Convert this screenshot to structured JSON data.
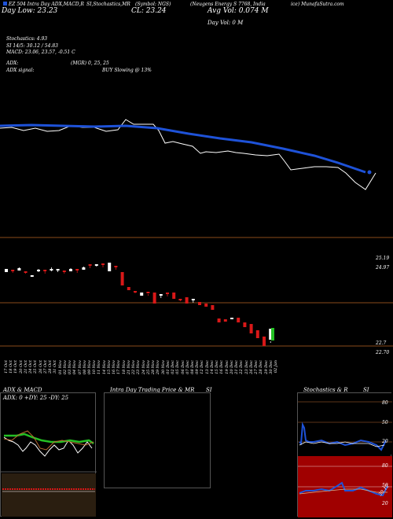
{
  "header": {
    "top_left": "EZ 504 Intra Day ADX,MACD,R",
    "top_left_2": "SI,Stochastics,MR",
    "top_mid": "(Symbol: NGS)",
    "top_right": "(Neugens Energy S 7768, India",
    "top_right_2": "ice) MunafaSutra.com",
    "day_low": "Day Low: 23.23",
    "close": "CL: 23.24",
    "avg_vol": "Avg Vol: 0.074   M",
    "day_vol": "Day Vol: 0   M",
    "stoch_line": "Stochastics: 4.93",
    "si_line": "SI 14/5: 30.12 / 54.83",
    "macd_line": "MACD: 23.06, 23.57, -0.51 C",
    "adx_line": "ADX:",
    "adx_vals": "(MGR) 0, 25, 25",
    "adx_signal": "ADX signal:",
    "buy_signal": "BUY Slowing @ 13%"
  },
  "price_levels": {
    "l1": "25.19",
    "l2": "24.97",
    "l3": "22.7",
    "l4": "22.70"
  },
  "date_labels": [
    "17 Oct",
    "18 Oct",
    "19 Oct",
    "20 Oct",
    "21 Oct",
    "24 Oct",
    "25 Oct",
    "26 Oct",
    "27 Oct",
    "28 Oct",
    "31 Oct",
    "01 Nov",
    "02 Nov",
    "03 Nov",
    "04 Nov",
    "07 Nov",
    "08 Nov",
    "09 Nov",
    "10 Nov",
    "11 Nov",
    "14 Nov",
    "15 Nov",
    "16 Nov",
    "17 Nov",
    "18 Nov",
    "21 Nov",
    "22 Nov",
    "23 Nov",
    "24 Nov",
    "25 Nov",
    "28 Nov",
    "29 Nov",
    "30 Nov",
    "01 Dec",
    "02 Dec",
    "05 Dec",
    "06 Dec",
    "07 Dec",
    "08 Dec",
    "09 Dec",
    "12 Dec",
    "13 Dec",
    "14 Dec",
    "15 Dec",
    "16 Dec",
    "19 Dec",
    "20 Dec",
    "21 Dec",
    "22 Dec",
    "23 Dec",
    "26 Dec",
    "27 Dec",
    "28 Dec",
    "29 Dec",
    "30 Dec",
    "02 Jan"
  ],
  "panels": {
    "adx_title": "ADX  & MACD",
    "adx_vals": "ADX: 0   +DY: 25  -DY: 25",
    "intra_title": "Intra  Day Trading Price  & MR",
    "intra_si": "SI",
    "stoch_title": "Stochastics & R",
    "stoch_si": "SI",
    "stoch_ticks": [
      "80",
      "50",
      "20"
    ],
    "rsi_ticks": [
      "80",
      "50",
      "20"
    ],
    "rsi_val": "30.12"
  },
  "colors": {
    "ma_line": "#1e52d8",
    "price_line": "#ffffff",
    "bull": "#ffffff",
    "bear": "#d81818",
    "level_line": "#8a4a1a",
    "panel_red": "#a00000",
    "panel_border": "#555555"
  }
}
